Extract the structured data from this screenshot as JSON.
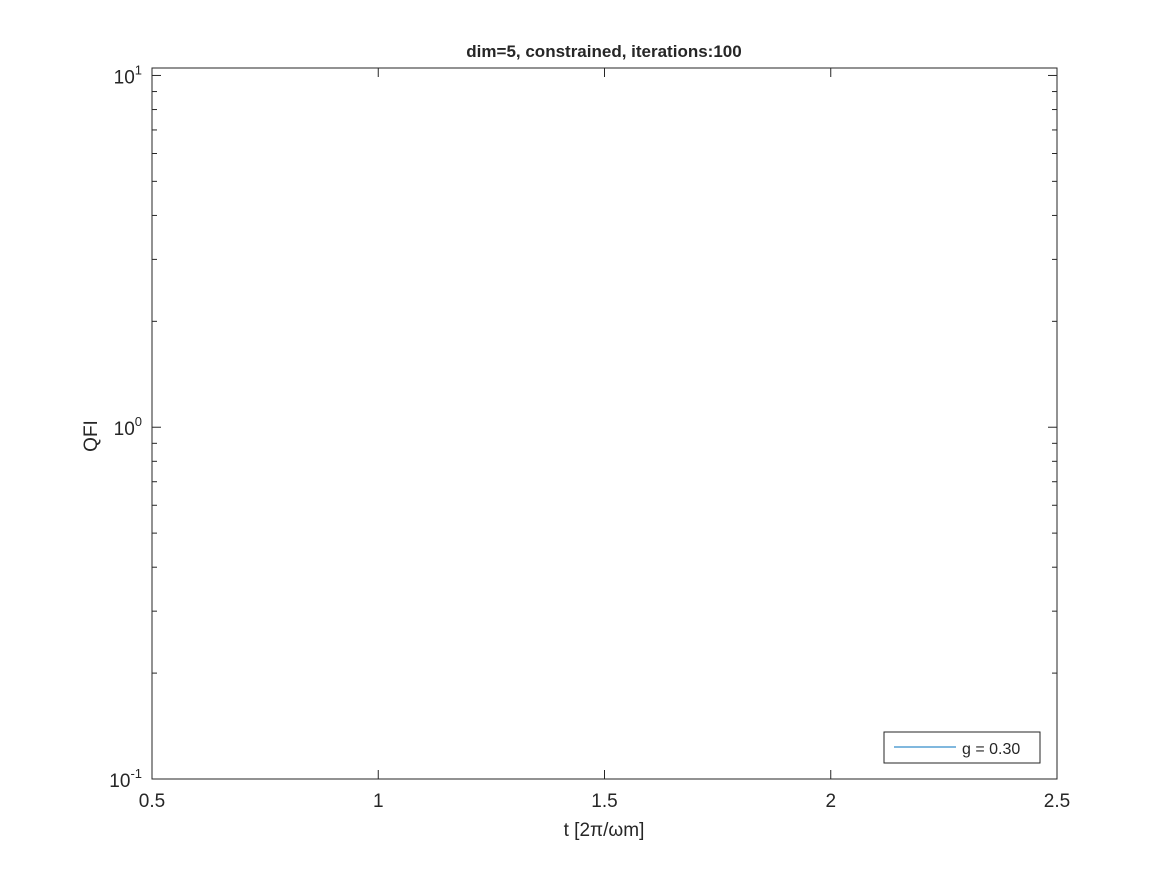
{
  "chart_data": {
    "type": "line",
    "title": "dim=5, constrained, iterations:100",
    "xlabel": "t [2π/ωm]",
    "ylabel": "QFI",
    "xlim": [
      0.5,
      2.5
    ],
    "ylim": [
      0.1,
      10.5
    ],
    "yscale": "log",
    "xticks": [
      0.5,
      1,
      1.5,
      2,
      2.5
    ],
    "xtick_labels": [
      "0.5",
      "1",
      "1.5",
      "2",
      "2.5"
    ],
    "yticks": [
      {
        "value": 0.1,
        "base": "10",
        "exp": "-1"
      },
      {
        "value": 1,
        "base": "10",
        "exp": "0"
      },
      {
        "value": 10,
        "base": "10",
        "exp": "1"
      }
    ],
    "grid": false,
    "legend_position": "bottom-right",
    "series": [
      {
        "name": "g = 0.30",
        "color": "#0072BD",
        "x": [],
        "y": []
      }
    ]
  }
}
